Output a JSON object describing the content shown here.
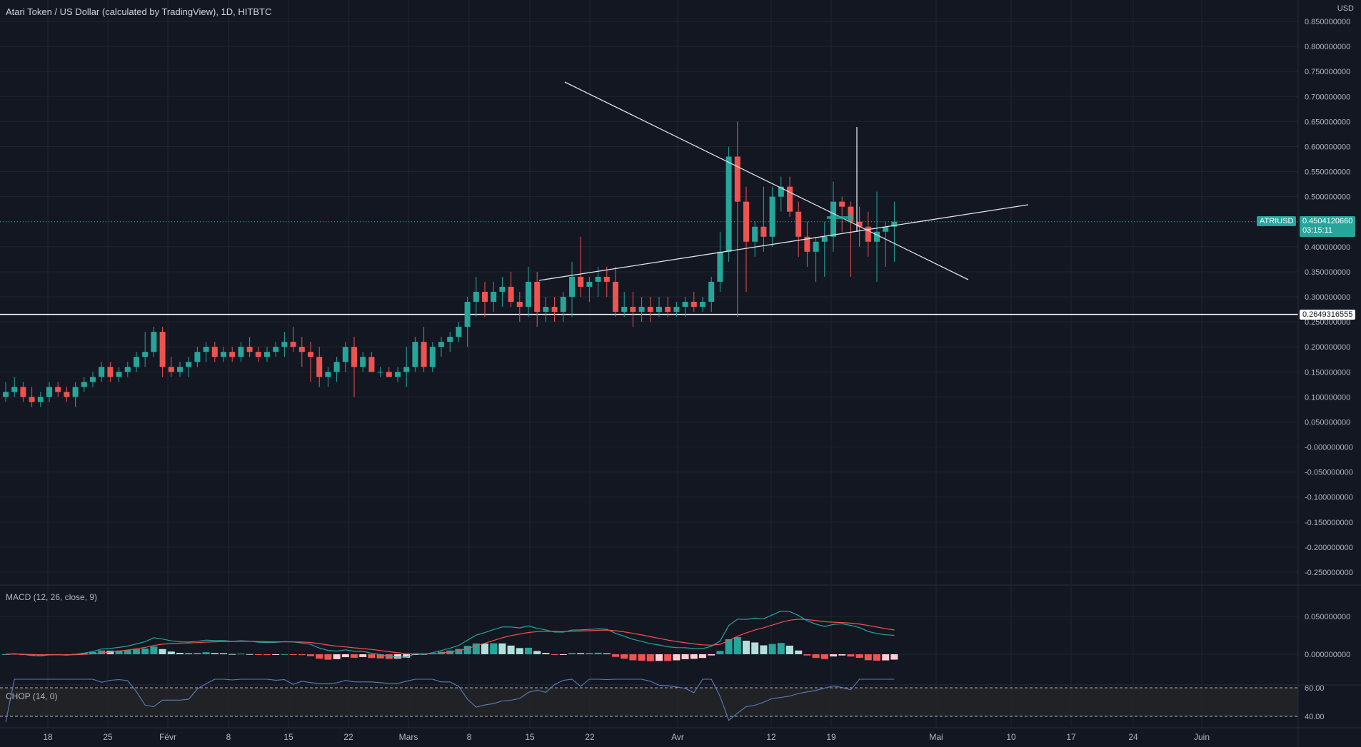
{
  "header": {
    "title": "Atari Token / US Dollar (calculated by TradingView), 1D, HITBTC",
    "currency": "USD"
  },
  "price_panel": {
    "symbol_badge": "ATRIUSD",
    "last_price": "0.4504120660",
    "countdown": "03:15:11",
    "level_label": "0.2649316555",
    "colors": {
      "up": "#26a69a",
      "down": "#ef5350",
      "grid": "#1f2430",
      "line": "#ffffff"
    }
  },
  "macd": {
    "label": "MACD (12, 26, close, 9)"
  },
  "chop": {
    "label": "CHOP (14, 0)"
  },
  "chart_data": [
    {
      "type": "candlestick",
      "title": "",
      "x_ticks": [
        "18",
        "25",
        "Févr",
        "8",
        "15",
        "22",
        "Mars",
        "8",
        "15",
        "22",
        "Avr",
        "12",
        "19",
        "Mai",
        "10",
        "17",
        "24",
        "Juin"
      ],
      "y_ticks": [
        "0.850000000",
        "0.800000000",
        "0.750000000",
        "0.700000000",
        "0.650000000",
        "0.600000000",
        "0.550000000",
        "0.500000000",
        "0.450000000",
        "0.400000000",
        "0.350000000",
        "0.300000000",
        "0.250000000",
        "0.200000000",
        "0.150000000",
        "0.100000000",
        "0.050000000",
        "-0.000000000",
        "-0.050000000",
        "-0.100000000",
        "-0.150000000",
        "-0.200000000",
        "-0.250000000"
      ],
      "ylim": [
        -0.27,
        0.87
      ],
      "horizontal_level": 0.26493,
      "ohlc": [
        [
          0.1,
          0.13,
          0.09,
          0.11
        ],
        [
          0.11,
          0.14,
          0.1,
          0.12
        ],
        [
          0.12,
          0.13,
          0.09,
          0.1
        ],
        [
          0.1,
          0.12,
          0.08,
          0.09
        ],
        [
          0.09,
          0.11,
          0.08,
          0.1
        ],
        [
          0.1,
          0.13,
          0.09,
          0.12
        ],
        [
          0.12,
          0.13,
          0.1,
          0.11
        ],
        [
          0.11,
          0.12,
          0.09,
          0.1
        ],
        [
          0.1,
          0.13,
          0.08,
          0.12
        ],
        [
          0.12,
          0.14,
          0.11,
          0.13
        ],
        [
          0.13,
          0.15,
          0.12,
          0.14
        ],
        [
          0.14,
          0.17,
          0.13,
          0.16
        ],
        [
          0.16,
          0.17,
          0.13,
          0.14
        ],
        [
          0.14,
          0.16,
          0.13,
          0.15
        ],
        [
          0.15,
          0.17,
          0.14,
          0.16
        ],
        [
          0.16,
          0.19,
          0.15,
          0.18
        ],
        [
          0.18,
          0.23,
          0.16,
          0.19
        ],
        [
          0.19,
          0.24,
          0.18,
          0.23
        ],
        [
          0.23,
          0.24,
          0.14,
          0.16
        ],
        [
          0.16,
          0.18,
          0.14,
          0.15
        ],
        [
          0.15,
          0.17,
          0.14,
          0.16
        ],
        [
          0.16,
          0.18,
          0.14,
          0.17
        ],
        [
          0.17,
          0.2,
          0.16,
          0.19
        ],
        [
          0.19,
          0.21,
          0.17,
          0.2
        ],
        [
          0.2,
          0.21,
          0.17,
          0.18
        ],
        [
          0.18,
          0.2,
          0.17,
          0.19
        ],
        [
          0.19,
          0.2,
          0.17,
          0.18
        ],
        [
          0.18,
          0.21,
          0.17,
          0.2
        ],
        [
          0.2,
          0.22,
          0.18,
          0.19
        ],
        [
          0.19,
          0.2,
          0.17,
          0.18
        ],
        [
          0.18,
          0.2,
          0.17,
          0.19
        ],
        [
          0.19,
          0.21,
          0.18,
          0.2
        ],
        [
          0.2,
          0.23,
          0.18,
          0.21
        ],
        [
          0.21,
          0.24,
          0.19,
          0.2
        ],
        [
          0.2,
          0.22,
          0.16,
          0.19
        ],
        [
          0.19,
          0.21,
          0.13,
          0.18
        ],
        [
          0.18,
          0.2,
          0.12,
          0.14
        ],
        [
          0.14,
          0.16,
          0.12,
          0.15
        ],
        [
          0.15,
          0.18,
          0.13,
          0.17
        ],
        [
          0.17,
          0.21,
          0.15,
          0.2
        ],
        [
          0.2,
          0.22,
          0.1,
          0.16
        ],
        [
          0.16,
          0.19,
          0.15,
          0.18
        ],
        [
          0.18,
          0.19,
          0.15,
          0.15
        ],
        [
          0.15,
          0.16,
          0.14,
          0.15
        ],
        [
          0.15,
          0.16,
          0.14,
          0.14
        ],
        [
          0.14,
          0.16,
          0.13,
          0.15
        ],
        [
          0.15,
          0.2,
          0.12,
          0.16
        ],
        [
          0.16,
          0.22,
          0.15,
          0.21
        ],
        [
          0.21,
          0.24,
          0.15,
          0.16
        ],
        [
          0.16,
          0.21,
          0.15,
          0.2
        ],
        [
          0.2,
          0.22,
          0.18,
          0.21
        ],
        [
          0.21,
          0.23,
          0.19,
          0.22
        ],
        [
          0.22,
          0.25,
          0.21,
          0.24
        ],
        [
          0.24,
          0.3,
          0.2,
          0.29
        ],
        [
          0.29,
          0.34,
          0.26,
          0.31
        ],
        [
          0.31,
          0.33,
          0.26,
          0.29
        ],
        [
          0.29,
          0.33,
          0.27,
          0.31
        ],
        [
          0.31,
          0.34,
          0.28,
          0.32
        ],
        [
          0.32,
          0.35,
          0.28,
          0.29
        ],
        [
          0.29,
          0.31,
          0.25,
          0.28
        ],
        [
          0.28,
          0.36,
          0.26,
          0.33
        ],
        [
          0.33,
          0.35,
          0.24,
          0.27
        ],
        [
          0.27,
          0.3,
          0.25,
          0.28
        ],
        [
          0.28,
          0.3,
          0.25,
          0.27
        ],
        [
          0.27,
          0.31,
          0.25,
          0.3
        ],
        [
          0.3,
          0.37,
          0.26,
          0.34
        ],
        [
          0.34,
          0.42,
          0.3,
          0.32
        ],
        [
          0.32,
          0.34,
          0.29,
          0.33
        ],
        [
          0.33,
          0.36,
          0.3,
          0.34
        ],
        [
          0.34,
          0.36,
          0.3,
          0.33
        ],
        [
          0.33,
          0.36,
          0.26,
          0.27
        ],
        [
          0.27,
          0.31,
          0.26,
          0.28
        ],
        [
          0.28,
          0.31,
          0.24,
          0.27
        ],
        [
          0.27,
          0.3,
          0.25,
          0.28
        ],
        [
          0.28,
          0.3,
          0.25,
          0.27
        ],
        [
          0.27,
          0.3,
          0.26,
          0.28
        ],
        [
          0.28,
          0.3,
          0.26,
          0.27
        ],
        [
          0.27,
          0.29,
          0.26,
          0.28
        ],
        [
          0.28,
          0.3,
          0.26,
          0.29
        ],
        [
          0.29,
          0.31,
          0.27,
          0.28
        ],
        [
          0.28,
          0.3,
          0.27,
          0.29
        ],
        [
          0.29,
          0.34,
          0.27,
          0.33
        ],
        [
          0.33,
          0.43,
          0.31,
          0.39
        ],
        [
          0.39,
          0.6,
          0.37,
          0.58
        ],
        [
          0.58,
          0.65,
          0.26,
          0.49
        ],
        [
          0.49,
          0.52,
          0.31,
          0.41
        ],
        [
          0.41,
          0.45,
          0.38,
          0.44
        ],
        [
          0.44,
          0.52,
          0.39,
          0.42
        ],
        [
          0.42,
          0.52,
          0.4,
          0.5
        ],
        [
          0.5,
          0.54,
          0.47,
          0.52
        ],
        [
          0.52,
          0.54,
          0.46,
          0.47
        ],
        [
          0.47,
          0.49,
          0.38,
          0.42
        ],
        [
          0.42,
          0.45,
          0.36,
          0.39
        ],
        [
          0.39,
          0.42,
          0.33,
          0.41
        ],
        [
          0.41,
          0.45,
          0.34,
          0.42
        ],
        [
          0.42,
          0.53,
          0.39,
          0.49
        ],
        [
          0.49,
          0.5,
          0.43,
          0.48
        ],
        [
          0.48,
          0.49,
          0.34,
          0.45
        ],
        [
          0.45,
          0.48,
          0.4,
          0.44
        ],
        [
          0.44,
          0.47,
          0.38,
          0.41
        ],
        [
          0.41,
          0.51,
          0.33,
          0.43
        ],
        [
          0.43,
          0.45,
          0.36,
          0.44
        ],
        [
          0.44,
          0.49,
          0.37,
          0.45
        ]
      ]
    },
    {
      "type": "line",
      "title": "MACD (12, 26, close, 9)",
      "y_ticks": [
        "0.050000000",
        "0.000000000"
      ],
      "ylim": [
        -0.017,
        0.068
      ]
    },
    {
      "type": "line",
      "title": "CHOP (14, 0)",
      "y_ticks": [
        "60.00",
        "40.00"
      ],
      "bands": [
        60,
        40
      ],
      "ylim": [
        35,
        66
      ]
    }
  ]
}
